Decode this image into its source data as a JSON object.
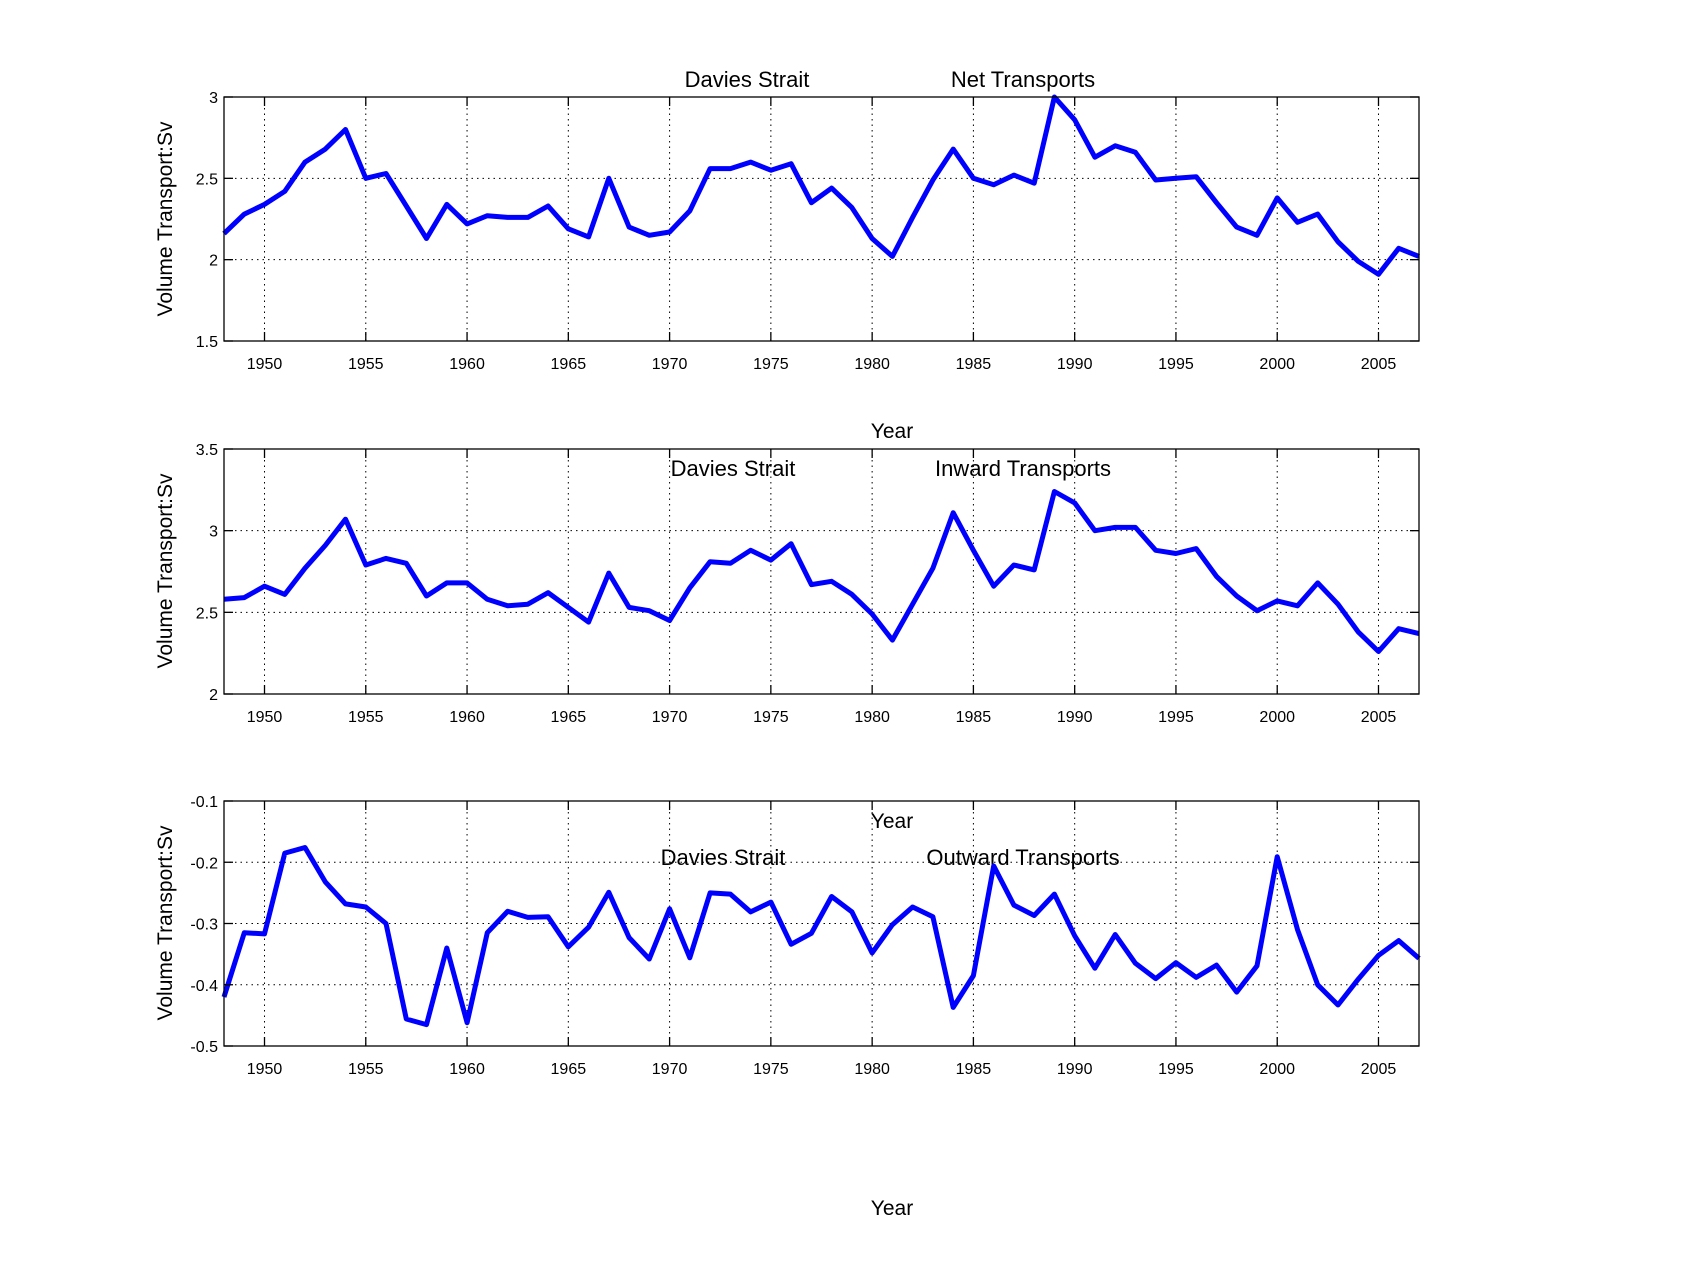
{
  "chart_data": [
    {
      "type": "line",
      "title_left": "Davies Strait",
      "title_right": "Net Transports",
      "xlabel": "Year",
      "ylabel": "Volume Transport:Sv",
      "xlim": [
        1948,
        2007
      ],
      "ylim": [
        1.5,
        3
      ],
      "xticks": [
        1950,
        1955,
        1960,
        1965,
        1970,
        1975,
        1980,
        1985,
        1990,
        1995,
        2000,
        2005
      ],
      "xtick_labels": [
        "1950",
        "1955",
        "1960",
        "1965",
        "1970",
        "1975",
        "1980",
        "1985",
        "1990",
        "1995",
        "2000",
        "2005"
      ],
      "yticks": [
        1.5,
        2,
        2.5,
        3
      ],
      "ytick_labels": [
        "1.5",
        "2",
        "2.5",
        "3"
      ],
      "grid": true,
      "series": [
        {
          "name": "Net Transports",
          "color": "#0000ff",
          "x": [
            1948,
            1949,
            1950,
            1951,
            1952,
            1953,
            1954,
            1955,
            1956,
            1957,
            1958,
            1959,
            1960,
            1961,
            1962,
            1963,
            1964,
            1965,
            1966,
            1967,
            1968,
            1969,
            1970,
            1971,
            1972,
            1973,
            1974,
            1975,
            1976,
            1977,
            1978,
            1979,
            1980,
            1981,
            1982,
            1983,
            1984,
            1985,
            1986,
            1987,
            1988,
            1989,
            1990,
            1991,
            1992,
            1993,
            1994,
            1995,
            1996,
            1997,
            1998,
            1999,
            2000,
            2001,
            2002,
            2003,
            2004,
            2005,
            2006,
            2007
          ],
          "values": [
            2.16,
            2.28,
            2.34,
            2.42,
            2.6,
            2.68,
            2.8,
            2.5,
            2.53,
            2.33,
            2.13,
            2.34,
            2.22,
            2.27,
            2.26,
            2.26,
            2.33,
            2.19,
            2.14,
            2.5,
            2.2,
            2.15,
            2.17,
            2.3,
            2.56,
            2.56,
            2.6,
            2.55,
            2.59,
            2.35,
            2.44,
            2.32,
            2.13,
            2.02,
            2.26,
            2.49,
            2.68,
            2.5,
            2.46,
            2.52,
            2.47,
            3.0,
            2.86,
            2.63,
            2.7,
            2.66,
            2.49,
            2.5,
            2.51,
            2.35,
            2.2,
            2.15,
            2.38,
            2.23,
            2.28,
            2.11,
            1.99,
            1.91,
            2.07,
            2.02
          ]
        }
      ]
    },
    {
      "type": "line",
      "title_left": "Davies Strait",
      "title_right": "Inward Transports",
      "xlabel": "Year",
      "ylabel": "Volume Transport:Sv",
      "xlim": [
        1948,
        2007
      ],
      "ylim": [
        2,
        3.5
      ],
      "xticks": [
        1950,
        1955,
        1960,
        1965,
        1970,
        1975,
        1980,
        1985,
        1990,
        1995,
        2000,
        2005
      ],
      "xtick_labels": [
        "1950",
        "1955",
        "1960",
        "1965",
        "1970",
        "1975",
        "1980",
        "1985",
        "1990",
        "1995",
        "2000",
        "2005"
      ],
      "yticks": [
        2,
        2.5,
        3,
        3.5
      ],
      "ytick_labels": [
        "2",
        "2.5",
        "3",
        "3.5"
      ],
      "grid": true,
      "series": [
        {
          "name": "Inward Transports",
          "color": "#0000ff",
          "x": [
            1948,
            1949,
            1950,
            1951,
            1952,
            1953,
            1954,
            1955,
            1956,
            1957,
            1958,
            1959,
            1960,
            1961,
            1962,
            1963,
            1964,
            1965,
            1966,
            1967,
            1968,
            1969,
            1970,
            1971,
            1972,
            1973,
            1974,
            1975,
            1976,
            1977,
            1978,
            1979,
            1980,
            1981,
            1982,
            1983,
            1984,
            1985,
            1986,
            1987,
            1988,
            1989,
            1990,
            1991,
            1992,
            1993,
            1994,
            1995,
            1996,
            1997,
            1998,
            1999,
            2000,
            2001,
            2002,
            2003,
            2004,
            2005,
            2006,
            2007
          ],
          "values": [
            2.58,
            2.59,
            2.66,
            2.61,
            2.77,
            2.91,
            3.07,
            2.79,
            2.83,
            2.8,
            2.6,
            2.68,
            2.68,
            2.58,
            2.54,
            2.55,
            2.62,
            2.53,
            2.44,
            2.74,
            2.53,
            2.51,
            2.45,
            2.65,
            2.81,
            2.8,
            2.88,
            2.82,
            2.92,
            2.67,
            2.69,
            2.61,
            2.49,
            2.33,
            2.55,
            2.77,
            3.11,
            2.88,
            2.66,
            2.79,
            2.76,
            3.24,
            3.17,
            3.0,
            3.02,
            3.02,
            2.88,
            2.86,
            2.89,
            2.72,
            2.6,
            2.51,
            2.57,
            2.54,
            2.68,
            2.55,
            2.38,
            2.26,
            2.4,
            2.37
          ]
        }
      ]
    },
    {
      "type": "line",
      "title_left": "Davies Strait",
      "title_right": "Outward Transports",
      "xlabel": "Year",
      "ylabel": "Volume Transport:Sv",
      "xlim": [
        1948,
        2007
      ],
      "ylim": [
        -0.5,
        -0.1
      ],
      "xticks": [
        1950,
        1955,
        1960,
        1965,
        1970,
        1975,
        1980,
        1985,
        1990,
        1995,
        2000,
        2005
      ],
      "xtick_labels": [
        "1950",
        "1955",
        "1960",
        "1965",
        "1970",
        "1975",
        "1980",
        "1985",
        "1990",
        "1995",
        "2000",
        "2005"
      ],
      "yticks": [
        -0.5,
        -0.4,
        -0.3,
        -0.2,
        -0.1
      ],
      "ytick_labels": [
        "-0.5",
        "-0.4",
        "-0.3",
        "-0.2",
        "-0.1"
      ],
      "grid": true,
      "series": [
        {
          "name": "Outward Transports",
          "color": "#0000ff",
          "x": [
            1948,
            1949,
            1950,
            1951,
            1952,
            1953,
            1954,
            1955,
            1956,
            1957,
            1958,
            1959,
            1960,
            1961,
            1962,
            1963,
            1964,
            1965,
            1966,
            1967,
            1968,
            1969,
            1970,
            1971,
            1972,
            1973,
            1974,
            1975,
            1976,
            1977,
            1978,
            1979,
            1980,
            1981,
            1982,
            1983,
            1984,
            1985,
            1986,
            1987,
            1988,
            1989,
            1990,
            1991,
            1992,
            1993,
            1994,
            1995,
            1996,
            1997,
            1998,
            1999,
            2000,
            2001,
            2002,
            2003,
            2004,
            2005,
            2006,
            2007
          ],
          "values": [
            -0.42,
            -0.315,
            -0.317,
            -0.185,
            -0.176,
            -0.232,
            -0.268,
            -0.273,
            -0.3,
            -0.456,
            -0.465,
            -0.34,
            -0.462,
            -0.315,
            -0.28,
            -0.29,
            -0.289,
            -0.338,
            -0.306,
            -0.249,
            -0.323,
            -0.358,
            -0.276,
            -0.356,
            -0.25,
            -0.252,
            -0.281,
            -0.265,
            -0.334,
            -0.316,
            -0.256,
            -0.281,
            -0.348,
            -0.302,
            -0.273,
            -0.289,
            -0.437,
            -0.385,
            -0.206,
            -0.27,
            -0.287,
            -0.252,
            -0.32,
            -0.373,
            -0.318,
            -0.365,
            -0.39,
            -0.364,
            -0.388,
            -0.368,
            -0.412,
            -0.369,
            -0.191,
            -0.31,
            -0.4,
            -0.433,
            -0.391,
            -0.352,
            -0.328,
            -0.357
          ]
        }
      ]
    }
  ]
}
